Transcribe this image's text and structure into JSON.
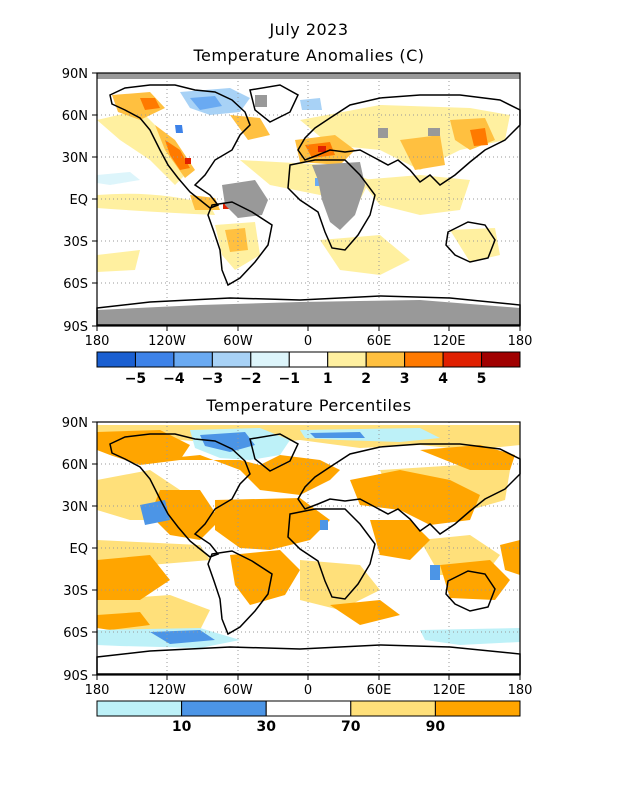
{
  "title": "July 2023",
  "panels": [
    {
      "title": "Temperature Anomalies (C)",
      "lat_labels": [
        "90N",
        "60N",
        "30N",
        "EQ",
        "30S",
        "60S",
        "90S"
      ],
      "lon_labels": [
        "180",
        "120W",
        "60W",
        "0",
        "60E",
        "120E",
        "180"
      ],
      "legend": {
        "colors": [
          "#1a5fd1",
          "#3d82e8",
          "#6aaaf2",
          "#a8d2f6",
          "#ddf5fb",
          "#ffffff",
          "#fff0a0",
          "#ffc040",
          "#ff7a00",
          "#e02000",
          "#a00000"
        ],
        "labels": [
          "−5",
          "−4",
          "−3",
          "−2",
          "−1",
          "1",
          "2",
          "3",
          "4",
          "5"
        ],
        "no_data_color": "#999999"
      }
    },
    {
      "title": "Temperature Percentiles",
      "lat_labels": [
        "90N",
        "60N",
        "30N",
        "EQ",
        "30S",
        "60S",
        "90S"
      ],
      "lon_labels": [
        "180",
        "120W",
        "60W",
        "0",
        "60E",
        "120E",
        "180"
      ],
      "legend": {
        "colors": [
          "#bdf1f8",
          "#4c95e6",
          "#ffffff",
          "#ffe07a",
          "#ffa500"
        ],
        "labels": [
          "10",
          "30",
          "70",
          "90"
        ]
      }
    }
  ]
}
